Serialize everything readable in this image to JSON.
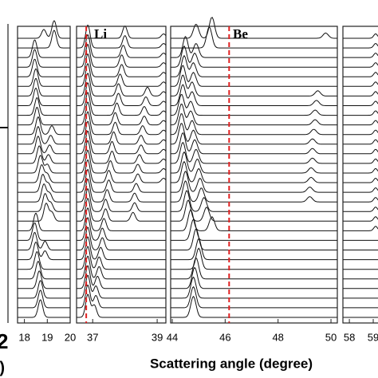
{
  "chart_data": {
    "type": "waterfall",
    "x_label": "Scattering angle (degree)",
    "left_labels": [
      "2",
      "V)"
    ],
    "line_color": "#111111",
    "marker_color": "#e02020",
    "panels": [
      {
        "xlim": [
          17.7,
          20
        ],
        "xticks": [
          18,
          19,
          20
        ],
        "peak_width": 0.1,
        "annotation": null,
        "red_line": null,
        "tracks": [
          {
            "intensity": 1,
            "values": [
              19.3,
              19.3,
              18.45,
              18.45,
              18.45,
              18.5,
              18.5,
              18.5,
              18.55,
              18.55,
              18.6,
              18.6,
              18.6,
              18.65,
              18.7,
              18.75,
              18.8,
              18.85,
              18.9,
              18.95,
              18.5,
              18.45,
              18.45,
              18.5,
              18.55,
              18.6,
              18.65,
              18.7,
              18.7,
              18.7
            ]
          },
          {
            "intensity": 0.5,
            "values": [
              18.85,
              null,
              null,
              null,
              null,
              null,
              null,
              null,
              null,
              null,
              19.2,
              19.15,
              19.1,
              19.05,
              19.0,
              19.0,
              19.05,
              19.1,
              19.15,
              19.2,
              null,
              null,
              18.9,
              18.9,
              null,
              null,
              null,
              null,
              null,
              null
            ]
          }
        ]
      },
      {
        "xlim": [
          36.5,
          39.27
        ],
        "xticks": [
          37,
          39
        ],
        "peak_width": 0.07,
        "annotation": "Li",
        "red_line": 36.8,
        "tracks": [
          {
            "intensity": 1.3,
            "values": [
              null,
              36.85,
              36.85,
              36.85,
              36.85,
              36.85,
              36.85,
              36.85,
              36.85,
              36.85,
              36.85,
              36.85,
              36.85,
              36.85,
              36.85,
              36.85,
              36.85,
              36.85,
              36.85,
              36.85,
              36.85,
              36.85,
              36.85,
              36.85,
              36.85,
              36.85,
              36.85,
              36.85,
              36.85,
              36.85
            ]
          },
          {
            "intensity": 0.7,
            "values": [
              38.0,
              38.0,
              37.95,
              37.9,
              37.9,
              37.85,
              37.8,
              37.8,
              37.75,
              37.7,
              37.7,
              37.65,
              37.6,
              37.6,
              37.55,
              37.5,
              37.5,
              37.45,
              37.4,
              37.4,
              37.35,
              37.3,
              37.3,
              37.25,
              37.2,
              37.2,
              37.15,
              37.1,
              37.1,
              37.05
            ]
          },
          {
            "intensity": 0.5,
            "values": [
              null,
              null,
              null,
              null,
              null,
              null,
              38.7,
              38.65,
              38.6,
              38.6,
              38.55,
              38.5,
              38.5,
              38.45,
              38.4,
              38.4,
              38.35,
              38.3,
              38.3,
              38.25,
              null,
              null,
              null,
              null,
              null,
              null,
              null,
              null,
              null,
              null
            ]
          },
          {
            "intensity": 0.25,
            "values": [
              39.2,
              39.2,
              39.2,
              39.2,
              39.2,
              39.2,
              39.2,
              39.2,
              39.2,
              39.2,
              39.2,
              39.2,
              39.2,
              39.2,
              39.2,
              39.2,
              null,
              null,
              null,
              null,
              null,
              null,
              null,
              null,
              null,
              null,
              null,
              null,
              null,
              null
            ]
          }
        ]
      },
      {
        "xlim": [
          43.94,
          50.24
        ],
        "xticks": [
          44,
          46,
          48,
          50
        ],
        "peak_width": 0.1,
        "annotation": "Be",
        "red_line": 46.15,
        "tracks": [
          {
            "intensity": 1.2,
            "values": [
              45.5,
              45.4,
              44.5,
              44.45,
              44.45,
              44.4,
              44.4,
              44.4,
              44.35,
              44.35,
              44.35,
              44.35,
              44.4,
              44.4,
              44.45,
              44.45,
              44.5,
              44.5,
              44.55,
              44.6,
              44.7,
              44.8,
              44.9,
              45.0,
              45.0,
              44.9,
              44.85,
              44.8,
              44.8,
              44.8
            ]
          },
          {
            "intensity": 0.8,
            "values": [
              44.9,
              null,
              44.9,
              44.85,
              44.8,
              44.8,
              44.75,
              44.75,
              44.7,
              44.7,
              44.75,
              44.8,
              44.85,
              44.9,
              44.95,
              45.0,
              45.05,
              45.1,
              45.2,
              45.3,
              45.5,
              null,
              null,
              null,
              null,
              null,
              null,
              null,
              null,
              null
            ]
          },
          {
            "intensity": 0.3,
            "values": [
              49.8,
              null,
              null,
              null,
              null,
              null,
              49.5,
              49.45,
              49.4,
              49.4,
              49.35,
              49.3,
              49.3,
              49.3,
              49.25,
              49.25,
              49.2,
              49.2,
              null,
              null,
              null,
              null,
              null,
              null,
              null,
              null,
              null,
              null,
              null,
              null
            ]
          }
        ]
      },
      {
        "xlim": [
          57.73,
          59.4
        ],
        "xticks": [
          58,
          59
        ],
        "peak_width": 0.08,
        "annotation": null,
        "red_line": null,
        "tracks": [
          {
            "intensity": 0.25,
            "values": [
              59.1,
              59.1,
              59.1,
              59.1,
              59.1,
              59.1,
              59.1,
              59.1,
              59.1,
              59.1,
              59.1,
              59.1,
              59.1,
              59.1,
              59.1,
              59.1,
              59.1,
              59.1,
              59.1,
              59.1,
              59.1,
              null,
              null,
              null,
              null,
              null,
              null,
              null,
              null,
              null
            ]
          }
        ]
      }
    ]
  }
}
